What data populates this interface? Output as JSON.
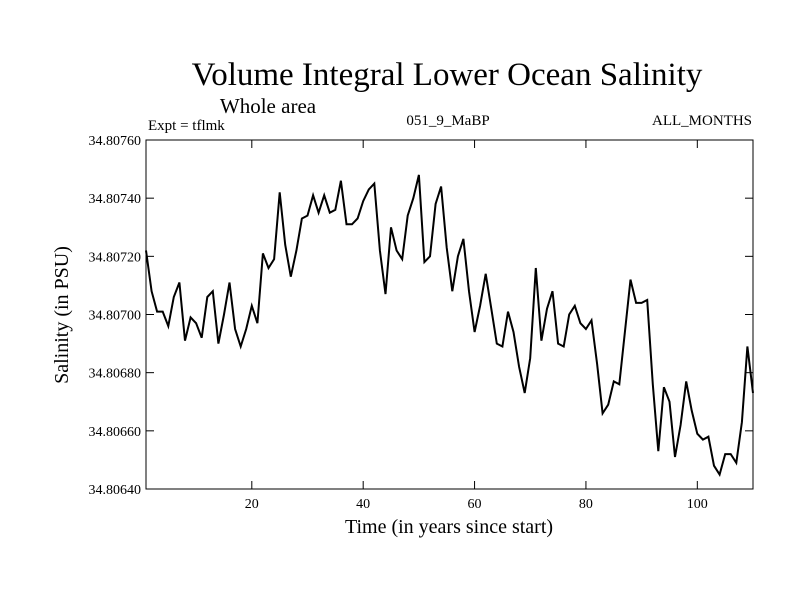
{
  "chart_data": {
    "type": "line",
    "title": "Volume Integral Lower Ocean Salinity",
    "subtitle": "Whole area",
    "experiment_label": "Expt = tflmk",
    "run_label": "051_9_MaBP",
    "period_label": "ALL_MONTHS",
    "xlabel": "Time (in years since start)",
    "ylabel": "Salinity (in PSU)",
    "xlim": [
      1,
      110
    ],
    "ylim": [
      34.8064,
      34.8076
    ],
    "x_ticks": [
      20,
      40,
      60,
      80,
      100
    ],
    "x_tick_labels": [
      "20",
      "40",
      "60",
      "80",
      "100"
    ],
    "y_ticks": [
      34.8064,
      34.8066,
      34.8068,
      34.807,
      34.8072,
      34.8074,
      34.8076
    ],
    "y_tick_labels": [
      "34.80640",
      "34.80660",
      "34.80680",
      "34.80700",
      "34.80720",
      "34.80740",
      "34.80760"
    ],
    "series": [
      {
        "name": "salinity",
        "color": "#000000",
        "x": [
          1,
          2,
          3,
          4,
          5,
          6,
          7,
          8,
          9,
          10,
          11,
          12,
          13,
          14,
          15,
          16,
          17,
          18,
          19,
          20,
          21,
          22,
          23,
          24,
          25,
          26,
          27,
          28,
          29,
          30,
          31,
          32,
          33,
          34,
          35,
          36,
          37,
          38,
          39,
          40,
          41,
          42,
          43,
          44,
          45,
          46,
          47,
          48,
          49,
          50,
          51,
          52,
          53,
          54,
          55,
          56,
          57,
          58,
          59,
          60,
          61,
          62,
          63,
          64,
          65,
          66,
          67,
          68,
          69,
          70,
          71,
          72,
          73,
          74,
          75,
          76,
          77,
          78,
          79,
          80,
          81,
          82,
          83,
          84,
          85,
          86,
          87,
          88,
          89,
          90,
          91,
          92,
          93,
          94,
          95,
          96,
          97,
          98,
          99,
          100,
          101,
          102,
          103,
          104,
          105,
          106,
          107,
          108,
          109,
          110
        ],
        "values": [
          34.80722,
          34.80708,
          34.80701,
          34.80701,
          34.80696,
          34.80706,
          34.80711,
          34.80691,
          34.80699,
          34.80697,
          34.80692,
          34.80706,
          34.80708,
          34.8069,
          34.807,
          34.80711,
          34.80695,
          34.80689,
          34.80695,
          34.80703,
          34.80697,
          34.80721,
          34.80716,
          34.80719,
          34.80742,
          34.80724,
          34.80713,
          34.80722,
          34.80733,
          34.80734,
          34.80741,
          34.80735,
          34.80741,
          34.80735,
          34.80736,
          34.80746,
          34.80731,
          34.80731,
          34.80733,
          34.80739,
          34.80743,
          34.80745,
          34.80722,
          34.80707,
          34.8073,
          34.80722,
          34.80719,
          34.80734,
          34.8074,
          34.80748,
          34.80718,
          34.8072,
          34.80738,
          34.80744,
          34.80723,
          34.80708,
          34.8072,
          34.80726,
          34.80708,
          34.80694,
          34.80703,
          34.80714,
          34.80702,
          34.8069,
          34.80689,
          34.80701,
          34.80694,
          34.80682,
          34.80673,
          34.80685,
          34.80716,
          34.80691,
          34.80702,
          34.80708,
          34.8069,
          34.80689,
          34.807,
          34.80703,
          34.80697,
          34.80695,
          34.80698,
          34.80683,
          34.80666,
          34.80669,
          34.80677,
          34.80676,
          34.80694,
          34.80712,
          34.80704,
          34.80704,
          34.80705,
          34.80676,
          34.80653,
          34.80675,
          34.8067,
          34.80651,
          34.80662,
          34.80677,
          34.80667,
          34.80659,
          34.80657,
          34.80658,
          34.80648,
          34.80645,
          34.80652,
          34.80652,
          34.80649,
          34.80663,
          34.80689,
          34.80673
        ]
      }
    ]
  }
}
